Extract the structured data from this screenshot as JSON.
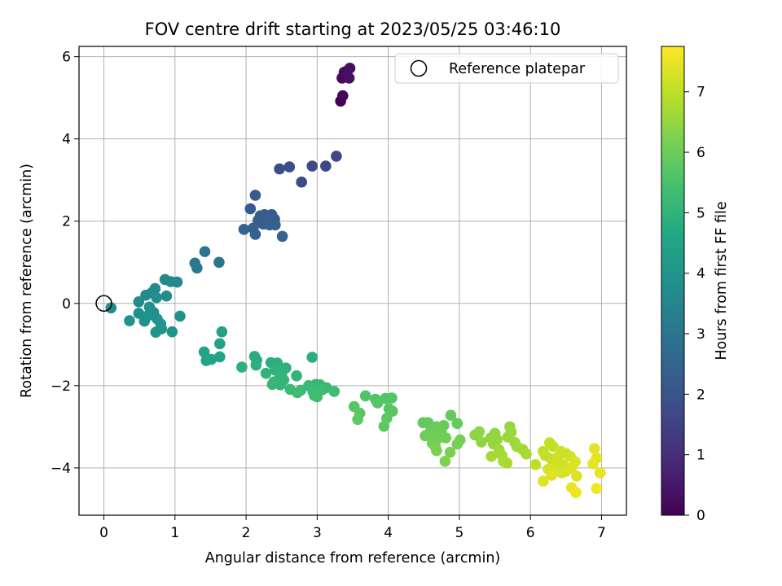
{
  "chart_data": {
    "type": "scatter",
    "title": "FOV centre drift starting at 2023/05/25 03:46:10",
    "xlabel": "Angular distance from reference (arcmin)",
    "ylabel": "Rotation from reference (arcmin)",
    "xlim": [
      -0.35,
      7.35
    ],
    "ylim": [
      -5.15,
      6.25
    ],
    "xticks": [
      0,
      1,
      2,
      3,
      4,
      5,
      6,
      7
    ],
    "yticks": [
      -4,
      -2,
      0,
      2,
      4,
      6
    ],
    "grid": true,
    "legend": {
      "placement": "top-right",
      "entries": [
        "Reference platepar"
      ]
    },
    "reference_point": {
      "label": "Reference platepar",
      "x": 0,
      "y": 0
    },
    "colorbar": {
      "label": "Hours from first FF file",
      "range": [
        0,
        7.75
      ],
      "ticks": [
        0,
        1,
        2,
        3,
        4,
        5,
        6,
        7
      ],
      "colormap": "viridis"
    },
    "series": [
      {
        "name": "",
        "points": [
          {
            "x": 3.33,
            "y": 4.92,
            "c": 0.05
          },
          {
            "x": 3.36,
            "y": 5.05,
            "c": 0.1
          },
          {
            "x": 3.35,
            "y": 5.48,
            "c": 0.15
          },
          {
            "x": 3.38,
            "y": 5.62,
            "c": 0.2
          },
          {
            "x": 3.42,
            "y": 5.65,
            "c": 0.25
          },
          {
            "x": 3.46,
            "y": 5.72,
            "c": 0.3
          },
          {
            "x": 3.45,
            "y": 5.48,
            "c": 0.35
          },
          {
            "x": 3.27,
            "y": 3.58,
            "c": 1.6
          },
          {
            "x": 3.12,
            "y": 3.34,
            "c": 1.65
          },
          {
            "x": 2.93,
            "y": 3.34,
            "c": 1.7
          },
          {
            "x": 2.78,
            "y": 2.95,
            "c": 1.75
          },
          {
            "x": 2.61,
            "y": 3.32,
            "c": 1.8
          },
          {
            "x": 2.47,
            "y": 3.27,
            "c": 1.85
          },
          {
            "x": 2.13,
            "y": 2.63,
            "c": 2.2
          },
          {
            "x": 2.06,
            "y": 2.3,
            "c": 2.22
          },
          {
            "x": 2.2,
            "y": 2.13,
            "c": 2.24
          },
          {
            "x": 2.26,
            "y": 2.16,
            "c": 2.26
          },
          {
            "x": 2.36,
            "y": 2.16,
            "c": 2.28
          },
          {
            "x": 2.4,
            "y": 2.05,
            "c": 2.3
          },
          {
            "x": 2.31,
            "y": 2.0,
            "c": 2.32
          },
          {
            "x": 2.17,
            "y": 2.02,
            "c": 2.34
          },
          {
            "x": 2.24,
            "y": 1.93,
            "c": 2.36
          },
          {
            "x": 2.33,
            "y": 1.91,
            "c": 2.38
          },
          {
            "x": 2.41,
            "y": 1.91,
            "c": 2.4
          },
          {
            "x": 2.1,
            "y": 1.83,
            "c": 2.42
          },
          {
            "x": 1.97,
            "y": 1.8,
            "c": 2.44
          },
          {
            "x": 2.13,
            "y": 1.68,
            "c": 2.46
          },
          {
            "x": 2.51,
            "y": 1.63,
            "c": 2.48
          },
          {
            "x": 1.42,
            "y": 1.26,
            "c": 3.0
          },
          {
            "x": 1.62,
            "y": 1.0,
            "c": 3.05
          },
          {
            "x": 1.28,
            "y": 0.98,
            "c": 3.1
          },
          {
            "x": 1.31,
            "y": 0.86,
            "c": 3.15
          },
          {
            "x": 0.86,
            "y": 0.58,
            "c": 3.6
          },
          {
            "x": 0.94,
            "y": 0.53,
            "c": 3.62
          },
          {
            "x": 1.03,
            "y": 0.52,
            "c": 3.64
          },
          {
            "x": 0.72,
            "y": 0.36,
            "c": 3.66
          },
          {
            "x": 0.68,
            "y": 0.27,
            "c": 3.68
          },
          {
            "x": 0.59,
            "y": 0.2,
            "c": 3.7
          },
          {
            "x": 0.88,
            "y": 0.18,
            "c": 3.72
          },
          {
            "x": 0.74,
            "y": 0.14,
            "c": 3.74
          },
          {
            "x": 0.49,
            "y": 0.04,
            "c": 3.76
          },
          {
            "x": 0.1,
            "y": -0.11,
            "c": 3.78
          },
          {
            "x": 0.64,
            "y": -0.09,
            "c": 3.8
          },
          {
            "x": 0.7,
            "y": -0.22,
            "c": 3.82
          },
          {
            "x": 0.49,
            "y": -0.24,
            "c": 3.84
          },
          {
            "x": 0.62,
            "y": -0.3,
            "c": 3.86
          },
          {
            "x": 1.07,
            "y": -0.31,
            "c": 3.88
          },
          {
            "x": 0.75,
            "y": -0.38,
            "c": 3.9
          },
          {
            "x": 0.36,
            "y": -0.42,
            "c": 3.92
          },
          {
            "x": 0.57,
            "y": -0.43,
            "c": 3.94
          },
          {
            "x": 0.8,
            "y": -0.5,
            "c": 3.96
          },
          {
            "x": 0.81,
            "y": -0.62,
            "c": 3.98
          },
          {
            "x": 0.73,
            "y": -0.7,
            "c": 4.0
          },
          {
            "x": 0.96,
            "y": -0.69,
            "c": 4.02
          },
          {
            "x": 1.66,
            "y": -0.69,
            "c": 4.4
          },
          {
            "x": 1.63,
            "y": -0.98,
            "c": 4.42
          },
          {
            "x": 1.41,
            "y": -1.18,
            "c": 4.44
          },
          {
            "x": 1.63,
            "y": -1.3,
            "c": 4.46
          },
          {
            "x": 1.51,
            "y": -1.36,
            "c": 4.48
          },
          {
            "x": 1.44,
            "y": -1.39,
            "c": 4.5
          },
          {
            "x": 2.12,
            "y": -1.29,
            "c": 4.8
          },
          {
            "x": 2.15,
            "y": -1.38,
            "c": 4.82
          },
          {
            "x": 2.93,
            "y": -1.31,
            "c": 4.84
          },
          {
            "x": 2.35,
            "y": -1.44,
            "c": 4.86
          },
          {
            "x": 2.44,
            "y": -1.45,
            "c": 4.88
          },
          {
            "x": 2.14,
            "y": -1.5,
            "c": 4.9
          },
          {
            "x": 1.94,
            "y": -1.55,
            "c": 4.92
          },
          {
            "x": 2.56,
            "y": -1.57,
            "c": 4.94
          },
          {
            "x": 2.41,
            "y": -1.62,
            "c": 4.96
          },
          {
            "x": 2.28,
            "y": -1.7,
            "c": 4.98
          },
          {
            "x": 2.5,
            "y": -1.74,
            "c": 5.0
          },
          {
            "x": 2.71,
            "y": -1.76,
            "c": 5.02
          },
          {
            "x": 2.47,
            "y": -1.82,
            "c": 5.04
          },
          {
            "x": 2.53,
            "y": -1.86,
            "c": 5.06
          },
          {
            "x": 2.39,
            "y": -1.91,
            "c": 5.08
          },
          {
            "x": 2.48,
            "y": -1.98,
            "c": 5.1
          },
          {
            "x": 2.37,
            "y": -1.97,
            "c": 5.12
          },
          {
            "x": 2.98,
            "y": -1.97,
            "c": 5.14
          },
          {
            "x": 2.88,
            "y": -2.0,
            "c": 5.16
          },
          {
            "x": 3.04,
            "y": -1.98,
            "c": 5.18
          },
          {
            "x": 3.13,
            "y": -2.05,
            "c": 5.2
          },
          {
            "x": 2.62,
            "y": -2.09,
            "c": 5.22
          },
          {
            "x": 2.77,
            "y": -2.11,
            "c": 5.24
          },
          {
            "x": 2.94,
            "y": -2.14,
            "c": 5.26
          },
          {
            "x": 3.07,
            "y": -2.1,
            "c": 5.28
          },
          {
            "x": 3.24,
            "y": -2.14,
            "c": 5.3
          },
          {
            "x": 2.72,
            "y": -2.17,
            "c": 5.32
          },
          {
            "x": 2.96,
            "y": -2.24,
            "c": 5.34
          },
          {
            "x": 3.0,
            "y": -2.27,
            "c": 5.36
          },
          {
            "x": 3.68,
            "y": -2.25,
            "c": 5.6
          },
          {
            "x": 3.82,
            "y": -2.33,
            "c": 5.62
          },
          {
            "x": 3.96,
            "y": -2.31,
            "c": 5.64
          },
          {
            "x": 4.05,
            "y": -2.3,
            "c": 5.66
          },
          {
            "x": 3.85,
            "y": -2.42,
            "c": 5.68
          },
          {
            "x": 3.52,
            "y": -2.51,
            "c": 5.7
          },
          {
            "x": 4.01,
            "y": -2.56,
            "c": 5.72
          },
          {
            "x": 4.06,
            "y": -2.62,
            "c": 5.74
          },
          {
            "x": 3.6,
            "y": -2.67,
            "c": 5.76
          },
          {
            "x": 3.98,
            "y": -2.79,
            "c": 5.78
          },
          {
            "x": 3.57,
            "y": -2.82,
            "c": 5.8
          },
          {
            "x": 3.94,
            "y": -2.99,
            "c": 5.82
          },
          {
            "x": 4.49,
            "y": -2.9,
            "c": 5.84
          },
          {
            "x": 4.56,
            "y": -2.9,
            "c": 5.86
          },
          {
            "x": 4.88,
            "y": -2.72,
            "c": 5.88
          },
          {
            "x": 4.97,
            "y": -2.92,
            "c": 5.9
          },
          {
            "x": 4.78,
            "y": -2.97,
            "c": 5.92
          },
          {
            "x": 4.68,
            "y": -3.0,
            "c": 5.94
          },
          {
            "x": 4.6,
            "y": -3.06,
            "c": 5.96
          },
          {
            "x": 4.71,
            "y": -3.1,
            "c": 5.98
          },
          {
            "x": 4.75,
            "y": -3.15,
            "c": 6.0
          },
          {
            "x": 4.52,
            "y": -3.22,
            "c": 6.02
          },
          {
            "x": 4.64,
            "y": -3.2,
            "c": 6.04
          },
          {
            "x": 4.7,
            "y": -3.28,
            "c": 6.06
          },
          {
            "x": 4.81,
            "y": -3.27,
            "c": 6.08
          },
          {
            "x": 4.62,
            "y": -3.4,
            "c": 6.1
          },
          {
            "x": 5.01,
            "y": -3.32,
            "c": 6.12
          },
          {
            "x": 4.97,
            "y": -3.42,
            "c": 6.14
          },
          {
            "x": 4.66,
            "y": -3.48,
            "c": 6.16
          },
          {
            "x": 4.68,
            "y": -3.58,
            "c": 6.18
          },
          {
            "x": 4.87,
            "y": -3.62,
            "c": 6.2
          },
          {
            "x": 4.8,
            "y": -3.84,
            "c": 6.22
          },
          {
            "x": 5.22,
            "y": -3.2,
            "c": 6.4
          },
          {
            "x": 5.28,
            "y": -3.12,
            "c": 6.42
          },
          {
            "x": 5.31,
            "y": -3.37,
            "c": 6.44
          },
          {
            "x": 5.44,
            "y": -3.27,
            "c": 6.46
          },
          {
            "x": 5.5,
            "y": -3.16,
            "c": 6.48
          },
          {
            "x": 5.53,
            "y": -3.31,
            "c": 6.5
          },
          {
            "x": 5.48,
            "y": -3.42,
            "c": 6.52
          },
          {
            "x": 5.71,
            "y": -3.0,
            "c": 6.54
          },
          {
            "x": 5.73,
            "y": -3.13,
            "c": 6.56
          },
          {
            "x": 5.68,
            "y": -3.25,
            "c": 6.58
          },
          {
            "x": 5.78,
            "y": -3.38,
            "c": 6.6
          },
          {
            "x": 5.81,
            "y": -3.48,
            "c": 6.62
          },
          {
            "x": 5.56,
            "y": -3.56,
            "c": 6.64
          },
          {
            "x": 5.89,
            "y": -3.55,
            "c": 6.66
          },
          {
            "x": 5.45,
            "y": -3.72,
            "c": 6.68
          },
          {
            "x": 5.6,
            "y": -3.7,
            "c": 6.7
          },
          {
            "x": 5.94,
            "y": -3.66,
            "c": 6.72
          },
          {
            "x": 5.62,
            "y": -3.84,
            "c": 6.74
          },
          {
            "x": 5.67,
            "y": -3.88,
            "c": 6.76
          },
          {
            "x": 6.07,
            "y": -3.92,
            "c": 7.0
          },
          {
            "x": 6.18,
            "y": -3.6,
            "c": 7.02
          },
          {
            "x": 6.27,
            "y": -3.39,
            "c": 7.04
          },
          {
            "x": 6.32,
            "y": -3.48,
            "c": 7.06
          },
          {
            "x": 6.21,
            "y": -3.7,
            "c": 7.08
          },
          {
            "x": 6.29,
            "y": -3.78,
            "c": 7.1
          },
          {
            "x": 6.38,
            "y": -3.75,
            "c": 7.12
          },
          {
            "x": 6.43,
            "y": -3.6,
            "c": 7.14
          },
          {
            "x": 6.5,
            "y": -3.65,
            "c": 7.16
          },
          {
            "x": 6.56,
            "y": -3.72,
            "c": 7.18
          },
          {
            "x": 6.37,
            "y": -3.86,
            "c": 7.2
          },
          {
            "x": 6.46,
            "y": -3.92,
            "c": 7.22
          },
          {
            "x": 6.25,
            "y": -4.03,
            "c": 7.24
          },
          {
            "x": 6.33,
            "y": -4.07,
            "c": 7.26
          },
          {
            "x": 6.44,
            "y": -4.12,
            "c": 7.28
          },
          {
            "x": 6.5,
            "y": -4.08,
            "c": 7.3
          },
          {
            "x": 6.63,
            "y": -3.85,
            "c": 7.32
          },
          {
            "x": 6.58,
            "y": -4.0,
            "c": 7.34
          },
          {
            "x": 6.65,
            "y": -4.2,
            "c": 7.36
          },
          {
            "x": 6.18,
            "y": -4.32,
            "c": 7.38
          },
          {
            "x": 6.3,
            "y": -4.18,
            "c": 7.4
          },
          {
            "x": 6.9,
            "y": -3.53,
            "c": 7.42
          },
          {
            "x": 6.93,
            "y": -3.76,
            "c": 7.44
          },
          {
            "x": 6.88,
            "y": -3.9,
            "c": 7.46
          },
          {
            "x": 6.98,
            "y": -4.12,
            "c": 7.48
          },
          {
            "x": 6.58,
            "y": -4.48,
            "c": 7.5
          },
          {
            "x": 6.64,
            "y": -4.6,
            "c": 7.55
          },
          {
            "x": 6.93,
            "y": -4.5,
            "c": 7.6
          }
        ]
      }
    ]
  }
}
